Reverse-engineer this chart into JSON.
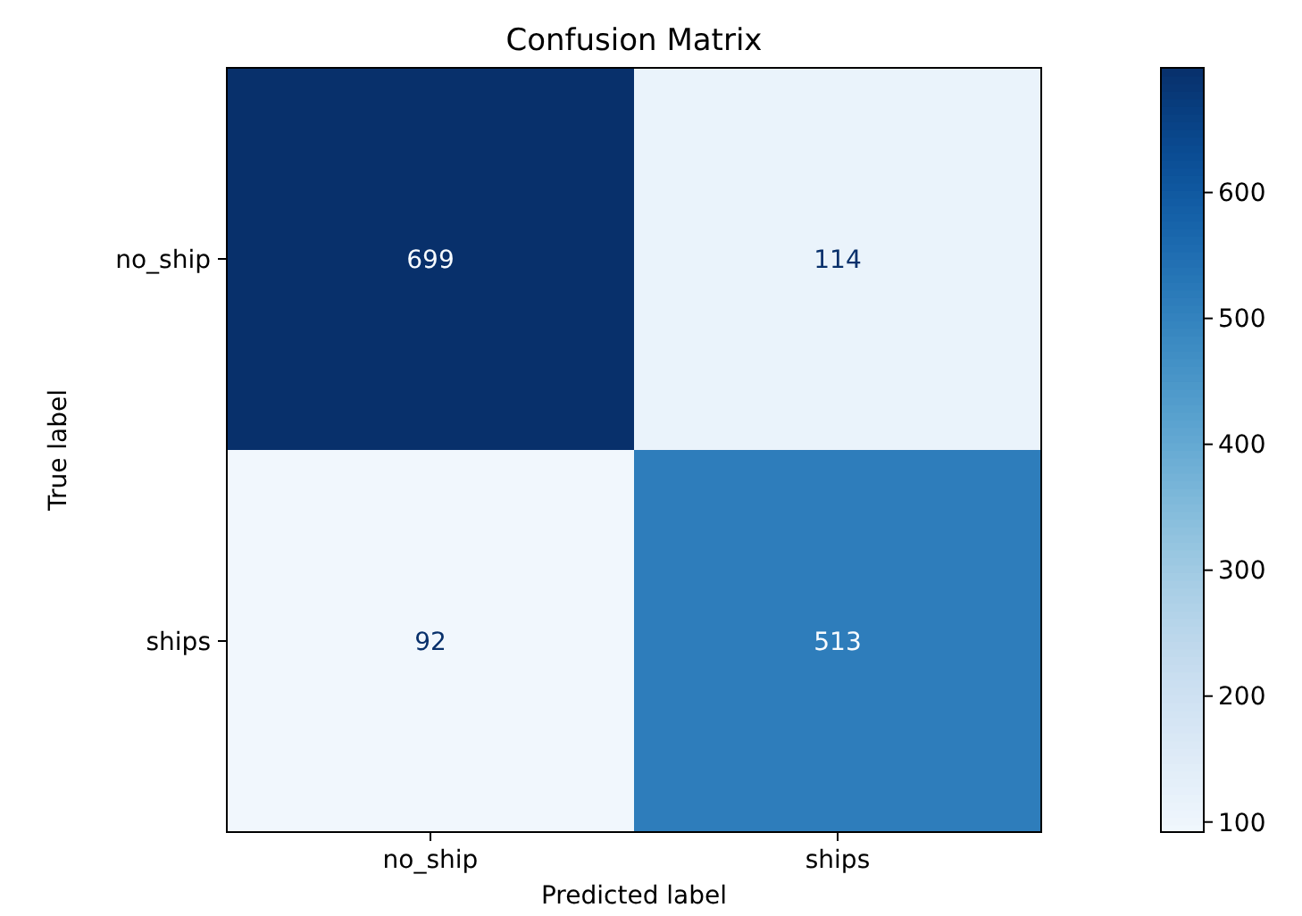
{
  "chart_data": {
    "type": "heatmap",
    "title": "Confusion Matrix",
    "xlabel": "Predicted label",
    "ylabel": "True label",
    "categories": [
      "no_ship",
      "ships"
    ],
    "y_categories": [
      "no_ship",
      "ships"
    ],
    "cells": [
      [
        699,
        114
      ],
      [
        92,
        513
      ]
    ],
    "clim": [
      92,
      699
    ],
    "cticks": [
      100,
      200,
      300,
      400,
      500,
      600
    ],
    "data_labels": true
  }
}
